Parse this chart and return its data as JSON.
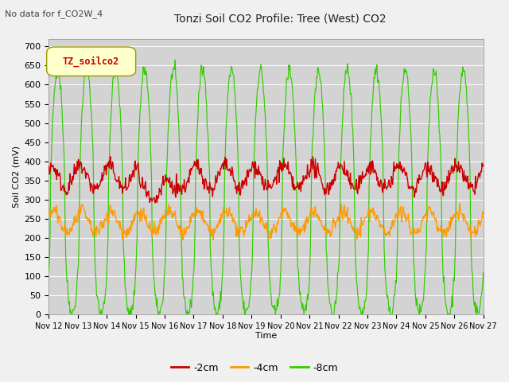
{
  "title": "Tonzi Soil CO2 Profile: Tree (West) CO2",
  "subtitle": "No data for f_CO2W_4",
  "ylabel": "Soil CO2 (mV)",
  "xlabel": "Time",
  "legend_label": "TZ_soilco2",
  "line_labels": [
    "-2cm",
    "-4cm",
    "-8cm"
  ],
  "line_colors": [
    "#cc0000",
    "#ff9900",
    "#33cc00"
  ],
  "ylim": [
    0,
    720
  ],
  "yticks": [
    0,
    50,
    100,
    150,
    200,
    250,
    300,
    350,
    400,
    450,
    500,
    550,
    600,
    650,
    700
  ],
  "xtick_labels": [
    "Nov 12",
    "Nov 13",
    "Nov 14",
    "Nov 15",
    "Nov 16",
    "Nov 17",
    "Nov 18",
    "Nov 19",
    "Nov 20",
    "Nov 21",
    "Nov 22",
    "Nov 23",
    "Nov 24",
    "Nov 25",
    "Nov 26",
    "Nov 27"
  ],
  "n_days": 15,
  "points_per_day": 48,
  "fig_bg": "#f0f0f0",
  "plot_bg": "#d3d3d3",
  "grid_color": "#ffffff",
  "title_fontsize": 10,
  "subtitle_fontsize": 8,
  "ylabel_fontsize": 8,
  "xlabel_fontsize": 8,
  "ytick_fontsize": 8,
  "xtick_fontsize": 7,
  "legend_box_color": "#ffffcc",
  "legend_box_edge": "#999900",
  "legend_text_color": "#cc0000"
}
